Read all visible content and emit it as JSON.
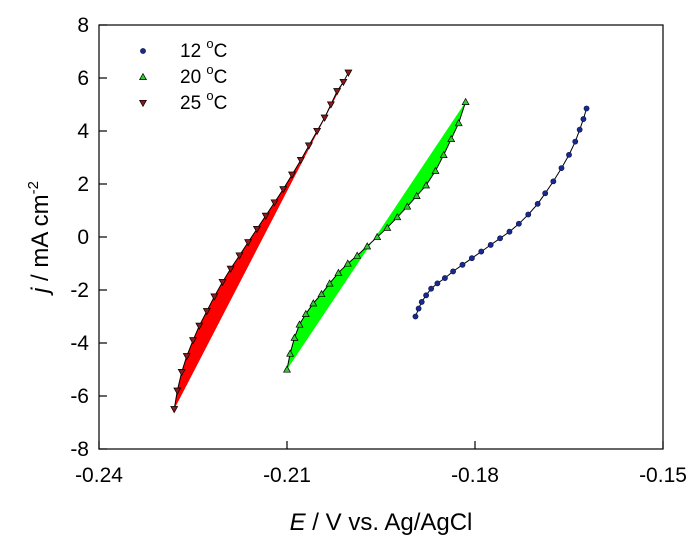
{
  "chart_data": {
    "type": "scatter",
    "title": "",
    "xlabel": {
      "symbol": "E",
      "rest": " / V vs. Ag/AgCl"
    },
    "ylabel": {
      "symbol": "j",
      "rest": " / mA cm",
      "exponent": "-2"
    },
    "xlim": [
      -0.24,
      -0.15
    ],
    "ylim": [
      -8,
      8
    ],
    "x_ticks": [
      -0.24,
      -0.21,
      -0.18,
      -0.15
    ],
    "x_tick_labels": [
      "-0.24",
      "-0.21",
      "-0.18",
      "-0.15"
    ],
    "y_ticks": [
      -8,
      -6,
      -4,
      -2,
      0,
      2,
      4,
      6,
      8
    ],
    "y_tick_labels": [
      "-8",
      "-6",
      "-4",
      "-2",
      "0",
      "2",
      "4",
      "6",
      "8"
    ],
    "grid": false,
    "legend_position": "top-left",
    "series": [
      {
        "name": "12 °C",
        "legend": {
          "value": "12",
          "degree": "o",
          "unit": "C"
        },
        "marker": "circle",
        "color": "#1a2a8c",
        "x": [
          -0.1895,
          -0.189,
          -0.1885,
          -0.1878,
          -0.187,
          -0.186,
          -0.1848,
          -0.1835,
          -0.182,
          -0.1805,
          -0.179,
          -0.1775,
          -0.176,
          -0.1745,
          -0.173,
          -0.1715,
          -0.17,
          -0.1688,
          -0.1675,
          -0.1662,
          -0.165,
          -0.164,
          -0.1633,
          -0.1627,
          -0.1622
        ],
        "y": [
          -3.0,
          -2.7,
          -2.45,
          -2.2,
          -1.95,
          -1.75,
          -1.55,
          -1.3,
          -1.05,
          -0.8,
          -0.55,
          -0.3,
          -0.05,
          0.2,
          0.5,
          0.85,
          1.25,
          1.65,
          2.1,
          2.6,
          3.1,
          3.6,
          4.05,
          4.45,
          4.85
        ]
      },
      {
        "name": "20 °C",
        "legend": {
          "value": "20",
          "degree": "o",
          "unit": "C"
        },
        "marker": "triangle-up",
        "color": "#2ecc2e",
        "fill": "#00ff00",
        "x": [
          -0.21,
          -0.2095,
          -0.2088,
          -0.208,
          -0.207,
          -0.2058,
          -0.2045,
          -0.2032,
          -0.2018,
          -0.2003,
          -0.1988,
          -0.1972,
          -0.1956,
          -0.194,
          -0.1924,
          -0.1908,
          -0.1893,
          -0.1878,
          -0.1863,
          -0.185,
          -0.1838,
          -0.1826,
          -0.1815
        ],
        "y": [
          -5.0,
          -4.4,
          -3.8,
          -3.3,
          -2.9,
          -2.5,
          -2.15,
          -1.75,
          -1.35,
          -1.0,
          -0.7,
          -0.35,
          0.0,
          0.35,
          0.75,
          1.15,
          1.55,
          1.95,
          2.5,
          3.1,
          3.7,
          4.3,
          5.1
        ]
      },
      {
        "name": "25 °C",
        "legend": {
          "value": "25",
          "degree": "o",
          "unit": "C"
        },
        "marker": "triangle-down",
        "color": "#8b1a1a",
        "fill": "#ff0000",
        "x": [
          -0.228,
          -0.2275,
          -0.2268,
          -0.226,
          -0.225,
          -0.224,
          -0.2228,
          -0.2216,
          -0.2203,
          -0.219,
          -0.2176,
          -0.2162,
          -0.2148,
          -0.2134,
          -0.212,
          -0.2106,
          -0.2092,
          -0.2078,
          -0.2065,
          -0.2052,
          -0.204,
          -0.203,
          -0.202,
          -0.201,
          -0.2002
        ],
        "y": [
          -6.5,
          -5.8,
          -5.1,
          -4.5,
          -3.9,
          -3.35,
          -2.8,
          -2.25,
          -1.7,
          -1.2,
          -0.7,
          -0.2,
          0.3,
          0.8,
          1.3,
          1.8,
          2.35,
          2.9,
          3.45,
          4.0,
          4.5,
          5.0,
          5.5,
          5.85,
          6.2
        ]
      }
    ]
  }
}
